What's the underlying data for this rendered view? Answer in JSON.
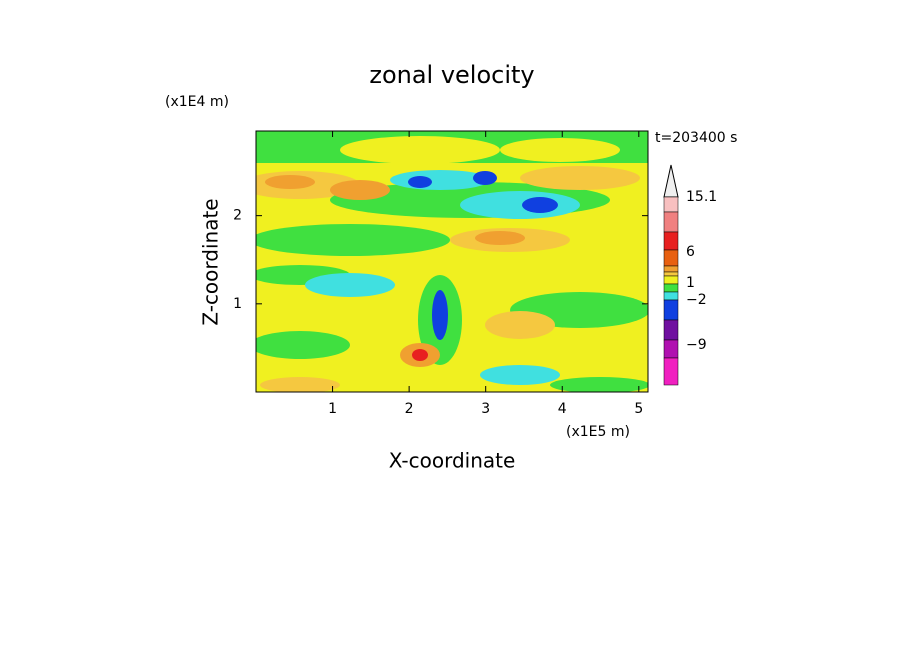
{
  "chart_data": {
    "type": "contour",
    "title": "zonal velocity",
    "x_label": "X-coordinate",
    "y_label": "Z-coordinate",
    "x_unit": "(x1E5 m)",
    "y_unit": "(x1E4 m)",
    "time_label": "t=203400 s",
    "xlim": [
      0,
      5.12
    ],
    "xticks": [
      1,
      2,
      3,
      4,
      5
    ],
    "ylim": [
      0,
      2.96
    ],
    "yticks": [
      1,
      2
    ],
    "colorbar": {
      "colors": [
        "#f0f0f0",
        "#f8c0c0",
        "#f08080",
        "#e82020",
        "#e86010",
        "#f0a030",
        "#f5c840",
        "#f0f020",
        "#40e040",
        "#40e0e0",
        "#1040e0",
        "#7010a0",
        "#b010b0",
        "#f020c0"
      ],
      "ticks": [
        15.1,
        6,
        1,
        {
          "value": -2,
          "label": "−2"
        },
        {
          "value": -9,
          "label": "−9"
        }
      ]
    }
  }
}
